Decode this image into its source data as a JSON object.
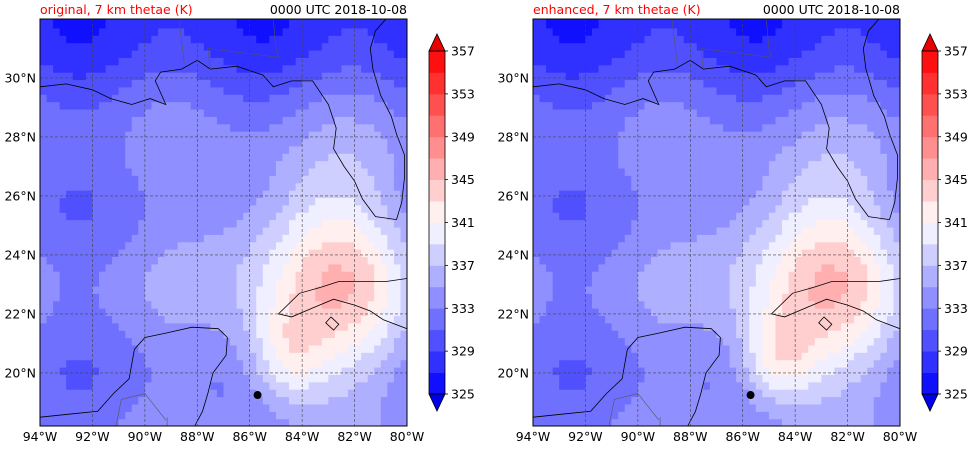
{
  "chart_data": [
    {
      "type": "heatmap",
      "title": "original, 7 km thetae (K)",
      "title_color": "#ff0000",
      "valid_time": "0000 UTC 2018-10-08",
      "xlim": [
        -94,
        -80
      ],
      "ylim": [
        18.2,
        32
      ],
      "x_ticks": [
        -94,
        -92,
        -90,
        -88,
        -86,
        -84,
        -82,
        -80
      ],
      "x_tick_labels": [
        "94°W",
        "92°W",
        "90°W",
        "88°W",
        "86°W",
        "84°W",
        "82°W",
        "80°W"
      ],
      "y_ticks": [
        20,
        22,
        24,
        26,
        28,
        30
      ],
      "y_tick_labels": [
        "20°N",
        "22°N",
        "24°N",
        "26°N",
        "28°N",
        "30°N"
      ],
      "grid": true,
      "storm_center": {
        "lon": -85.7,
        "lat": 19.25
      },
      "colorbar": {
        "levels": [
          325,
          327,
          329,
          331,
          333,
          335,
          337,
          339,
          341,
          343,
          345,
          347,
          349,
          351,
          353,
          355,
          357
        ],
        "tick_labels": [
          "325",
          "329",
          "333",
          "337",
          "341",
          "345",
          "349",
          "353",
          "357"
        ],
        "extend": "both",
        "colormap": "bwr"
      },
      "field_summary": "Thetae low (~329-333 K) over the Gulf of Mexico and northern land areas; high (~349-355 K) band east of the Yucatan near the storm center."
    },
    {
      "type": "heatmap",
      "title": "enhanced, 7 km thetae (K)",
      "title_color": "#ff0000",
      "valid_time": "0000 UTC 2018-10-08",
      "xlim": [
        -94,
        -80
      ],
      "ylim": [
        18.2,
        32
      ],
      "x_ticks": [
        -94,
        -92,
        -90,
        -88,
        -86,
        -84,
        -82,
        -80
      ],
      "x_tick_labels": [
        "94°W",
        "92°W",
        "90°W",
        "88°W",
        "86°W",
        "84°W",
        "82°W",
        "80°W"
      ],
      "y_ticks": [
        20,
        22,
        24,
        26,
        28,
        30
      ],
      "y_tick_labels": [
        "20°N",
        "22°N",
        "24°N",
        "26°N",
        "28°N",
        "30°N"
      ],
      "grid": true,
      "storm_center": {
        "lon": -85.7,
        "lat": 19.25
      },
      "colorbar": {
        "levels": [
          325,
          327,
          329,
          331,
          333,
          335,
          337,
          339,
          341,
          343,
          345,
          347,
          349,
          351,
          353,
          355,
          357
        ],
        "tick_labels": [
          "325",
          "329",
          "333",
          "337",
          "341",
          "345",
          "349",
          "353",
          "357"
        ],
        "extend": "both",
        "colormap": "bwr"
      },
      "field_summary": "Nearly identical pattern to the original panel with slightly stronger warm core near the storm center."
    }
  ]
}
